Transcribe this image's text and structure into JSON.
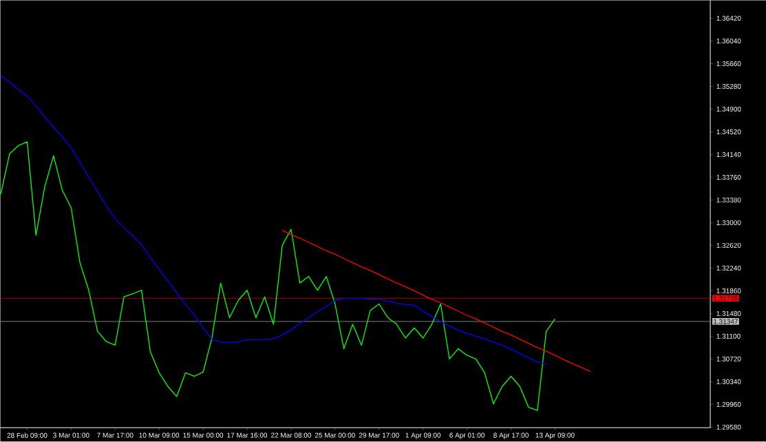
{
  "chart_data": {
    "type": "line",
    "ylim": [
      1.2957,
      1.3672
    ],
    "categories": [
      null,
      null,
      null,
      "28 Feb 09:00",
      null,
      null,
      null,
      null,
      "3 Mar 01:00",
      null,
      null,
      null,
      null,
      "7 Mar 17:00",
      null,
      null,
      null,
      null,
      "10 Mar 09:00",
      null,
      null,
      null,
      null,
      "15 Mar 00:00",
      null,
      null,
      null,
      null,
      "17 Mar 16:00",
      null,
      null,
      null,
      null,
      "22 Mar 08:00",
      null,
      null,
      null,
      null,
      "25 Mar 00:00",
      null,
      null,
      null,
      null,
      "29 Mar 17:00",
      null,
      null,
      null,
      null,
      "1 Apr 09:00",
      null,
      null,
      null,
      null,
      "6 Apr 01:00",
      null,
      null,
      null,
      null,
      "8 Apr 17:00",
      null,
      null,
      null,
      null,
      "13 Apr 09:00",
      null,
      null,
      null,
      null,
      null,
      null,
      null,
      null,
      null,
      null,
      null,
      null,
      null,
      null,
      null,
      null,
      null
    ],
    "yticks": [
      {
        "value": 1.2958,
        "label": "1.29580"
      },
      {
        "value": 1.2996,
        "label": "1.29960"
      },
      {
        "value": 1.3034,
        "label": "1.30340"
      },
      {
        "value": 1.3072,
        "label": "1.30720"
      },
      {
        "value": 1.311,
        "label": "1.31100"
      },
      {
        "value": 1.3148,
        "label": "1.31480"
      },
      {
        "value": 1.3186,
        "label": "1.31860"
      },
      {
        "value": 1.3224,
        "label": "1.32240"
      },
      {
        "value": 1.3262,
        "label": "1.32620"
      },
      {
        "value": 1.33,
        "label": "1.33000"
      },
      {
        "value": 1.3338,
        "label": "1.33380"
      },
      {
        "value": 1.3376,
        "label": "1.33760"
      },
      {
        "value": 1.3414,
        "label": "1.34140"
      },
      {
        "value": 1.3452,
        "label": "1.34520"
      },
      {
        "value": 1.349,
        "label": "1.34900"
      },
      {
        "value": 1.3528,
        "label": "1.35280"
      },
      {
        "value": 1.3566,
        "label": "1.35660"
      },
      {
        "value": 1.3604,
        "label": "1.36040"
      },
      {
        "value": 1.3642,
        "label": "1.36420"
      }
    ],
    "marker": "none",
    "line_style": "solid",
    "legend": false,
    "grid": false,
    "ref_lines": [
      {
        "axis": "y",
        "value": 1.31735,
        "label": "1.31735",
        "color": "#ff0000"
      },
      {
        "axis": "y",
        "value": 1.31347,
        "label": "1.31347",
        "color": "#c0c0c0"
      }
    ],
    "series": [
      {
        "color": "#00ff00",
        "values": [
          1.3348,
          1.3415,
          1.3429,
          1.3435,
          1.3279,
          1.336,
          1.3412,
          1.3354,
          1.3325,
          1.3233,
          1.3187,
          1.3118,
          1.3101,
          1.3095,
          1.3176,
          1.3181,
          1.3187,
          1.3084,
          1.3049,
          1.3026,
          1.3009,
          1.3049,
          1.3043,
          1.305,
          1.3107,
          1.3199,
          1.3141,
          1.317,
          1.3187,
          1.3141,
          1.3176,
          1.313,
          1.3262,
          1.3289,
          1.3199,
          1.321,
          1.3187,
          1.321,
          1.3164,
          1.3089,
          1.313,
          1.3095,
          1.3153,
          1.3164,
          1.3141,
          1.313,
          1.3107,
          1.3124,
          1.3107,
          1.313,
          1.3164,
          1.3072,
          1.3089,
          1.3078,
          1.3072,
          1.3049,
          1.2997,
          1.3026,
          1.3043,
          1.3026,
          1.2991,
          1.2986,
          1.3118,
          1.3139,
          null,
          null,
          null,
          null,
          null,
          null,
          null,
          null,
          null,
          null,
          null,
          null,
          null,
          null,
          null,
          null,
          null
        ]
      },
      {
        "color": "#0000ff",
        "values": [
          1.3546,
          1.3535,
          1.3523,
          1.3512,
          1.3495,
          1.3477,
          1.346,
          1.3443,
          1.3425,
          1.3401,
          1.3376,
          1.3352,
          1.3328,
          1.3307,
          1.3292,
          1.3278,
          1.3263,
          1.3242,
          1.3222,
          1.3202,
          1.3183,
          1.3163,
          1.3146,
          1.3124,
          1.3105,
          1.31,
          1.3099,
          1.3101,
          1.3104,
          1.3104,
          1.3104,
          1.3106,
          1.3112,
          1.3121,
          1.3131,
          1.3141,
          1.3151,
          1.316,
          1.317,
          1.3173,
          1.3173,
          1.3173,
          1.3172,
          1.3172,
          1.3169,
          1.3165,
          1.3163,
          1.3162,
          1.3152,
          1.3143,
          1.3135,
          1.3127,
          1.312,
          1.3115,
          1.311,
          1.3106,
          1.31,
          1.3095,
          1.3088,
          1.3081,
          1.3074,
          1.3067,
          1.3064,
          null,
          null,
          null,
          null,
          null,
          null,
          null,
          null,
          null,
          null,
          null,
          null,
          null,
          null,
          null,
          null,
          null,
          null
        ]
      },
      {
        "color": "#ff0000",
        "values": [
          null,
          null,
          null,
          null,
          null,
          null,
          null,
          null,
          null,
          null,
          null,
          null,
          null,
          null,
          null,
          null,
          null,
          null,
          null,
          null,
          null,
          null,
          null,
          null,
          null,
          null,
          null,
          null,
          null,
          null,
          null,
          null,
          1.3287,
          1.328,
          1.3274,
          1.3267,
          1.326,
          1.3253,
          1.3247,
          1.324,
          1.3233,
          1.3226,
          1.322,
          1.3213,
          1.3206,
          1.3199,
          1.3193,
          1.3186,
          1.3179,
          1.3172,
          1.3166,
          1.3159,
          1.3152,
          1.3145,
          1.3139,
          1.3132,
          1.3125,
          1.3118,
          1.3112,
          1.3105,
          1.3098,
          1.3091,
          1.3085,
          1.3078,
          1.3071,
          1.3064,
          1.3058,
          1.3051,
          null,
          null,
          null,
          null,
          null,
          null,
          null,
          null,
          null,
          null,
          null,
          null,
          null
        ]
      }
    ]
  }
}
